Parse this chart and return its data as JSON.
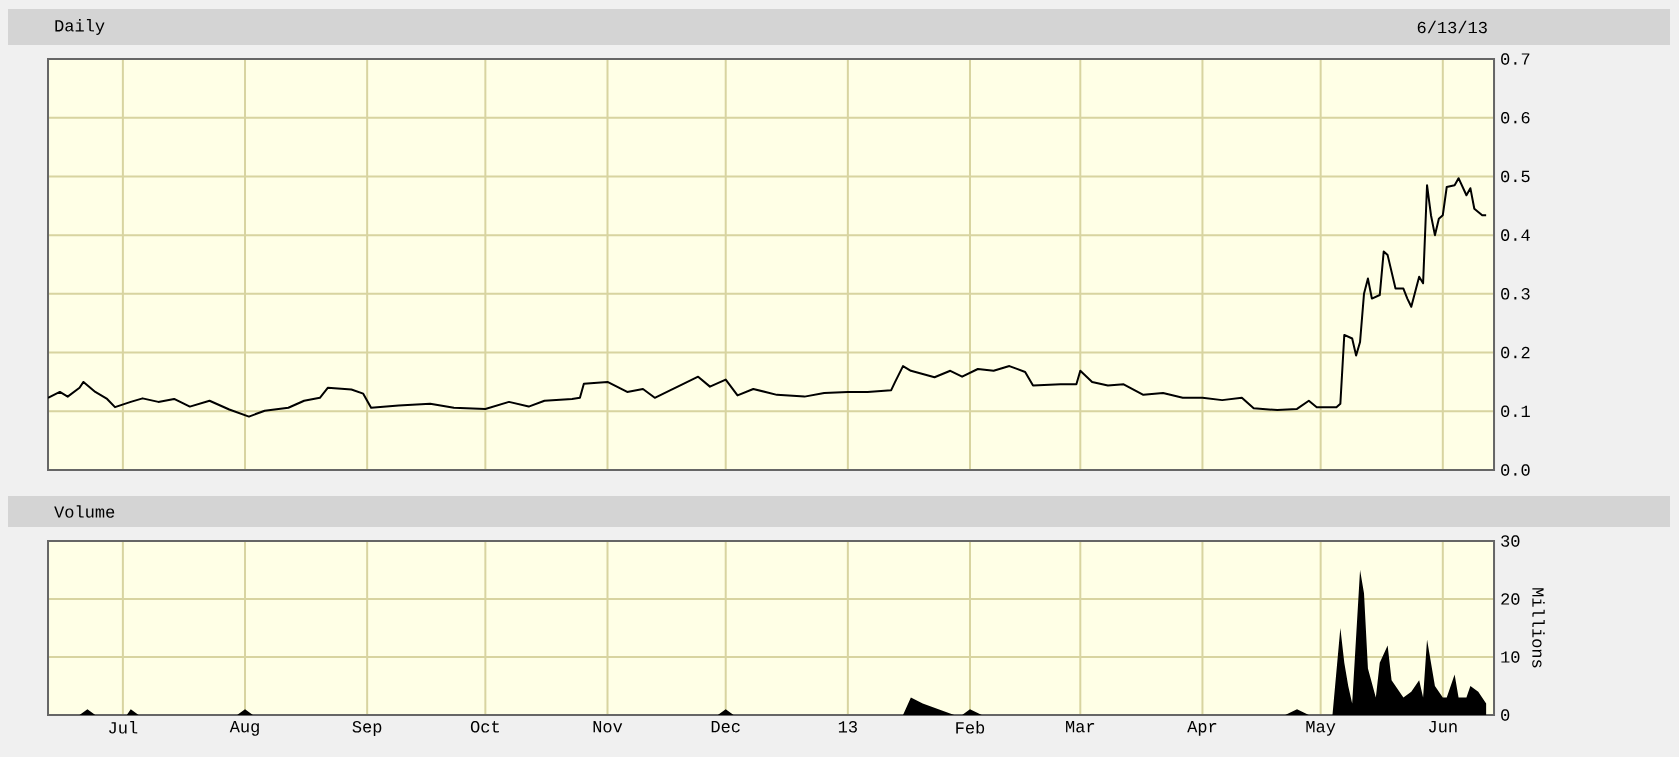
{
  "chart_data": [
    {
      "type": "line",
      "title": "Daily",
      "subtitle": "6/13/13",
      "x": [
        "2012-06-12",
        "2012-06-15",
        "2012-06-17",
        "2012-06-20",
        "2012-06-21",
        "2012-06-24",
        "2012-06-27",
        "2012-06-29",
        "2012-07-03",
        "2012-07-06",
        "2012-07-10",
        "2012-07-14",
        "2012-07-18",
        "2012-07-23",
        "2012-07-28",
        "2012-08-02",
        "2012-08-06",
        "2012-08-12",
        "2012-08-16",
        "2012-08-20",
        "2012-08-22",
        "2012-08-28",
        "2012-08-31",
        "2012-09-02",
        "2012-09-09",
        "2012-09-17",
        "2012-09-23",
        "2012-10-01",
        "2012-10-07",
        "2012-10-12",
        "2012-10-16",
        "2012-10-23",
        "2012-10-25",
        "2012-10-26",
        "2012-11-01",
        "2012-11-06",
        "2012-11-10",
        "2012-11-13",
        "2012-11-17",
        "2012-11-20",
        "2012-11-24",
        "2012-11-27",
        "2012-12-01",
        "2012-12-04",
        "2012-12-08",
        "2012-12-14",
        "2012-12-21",
        "2012-12-26",
        "2013-01-01",
        "2013-01-06",
        "2013-01-12",
        "2013-01-13",
        "2013-01-15",
        "2013-01-17",
        "2013-01-23",
        "2013-01-27",
        "2013-01-30",
        "2013-02-03",
        "2013-02-07",
        "2013-02-11",
        "2013-02-15",
        "2013-02-17",
        "2013-02-24",
        "2013-02-28",
        "2013-03-01",
        "2013-03-04",
        "2013-03-08",
        "2013-03-12",
        "2013-03-17",
        "2013-03-22",
        "2013-03-27",
        "2013-04-01",
        "2013-04-06",
        "2013-04-11",
        "2013-04-14",
        "2013-04-20",
        "2013-04-25",
        "2013-04-28",
        "2013-04-30",
        "2013-05-05",
        "2013-05-06",
        "2013-05-07",
        "2013-05-09",
        "2013-05-10",
        "2013-05-11",
        "2013-05-12",
        "2013-05-13",
        "2013-05-14",
        "2013-05-16",
        "2013-05-17",
        "2013-05-18",
        "2013-05-20",
        "2013-05-22",
        "2013-05-23",
        "2013-05-24",
        "2013-05-26",
        "2013-05-27",
        "2013-05-28",
        "2013-05-29",
        "2013-05-30",
        "2013-05-31",
        "2013-06-01",
        "2013-06-02",
        "2013-06-04",
        "2013-06-05",
        "2013-06-07",
        "2013-06-08",
        "2013-06-09",
        "2013-06-11",
        "2013-06-12"
      ],
      "values": [
        0.123,
        0.133,
        0.125,
        0.14,
        0.15,
        0.133,
        0.121,
        0.107,
        0.116,
        0.122,
        0.116,
        0.121,
        0.108,
        0.118,
        0.103,
        0.091,
        0.101,
        0.106,
        0.118,
        0.123,
        0.14,
        0.137,
        0.13,
        0.106,
        0.11,
        0.113,
        0.106,
        0.104,
        0.116,
        0.108,
        0.118,
        0.121,
        0.123,
        0.147,
        0.15,
        0.133,
        0.138,
        0.123,
        0.136,
        0.146,
        0.159,
        0.142,
        0.154,
        0.127,
        0.138,
        0.128,
        0.125,
        0.131,
        0.133,
        0.133,
        0.136,
        0.15,
        0.177,
        0.169,
        0.158,
        0.169,
        0.159,
        0.172,
        0.169,
        0.177,
        0.167,
        0.144,
        0.146,
        0.146,
        0.169,
        0.15,
        0.144,
        0.146,
        0.128,
        0.131,
        0.123,
        0.123,
        0.119,
        0.123,
        0.105,
        0.102,
        0.104,
        0.118,
        0.107,
        0.107,
        0.113,
        0.23,
        0.224,
        0.195,
        0.218,
        0.3,
        0.326,
        0.292,
        0.298,
        0.372,
        0.366,
        0.309,
        0.309,
        0.292,
        0.278,
        0.329,
        0.318,
        0.485,
        0.434,
        0.4,
        0.428,
        0.434,
        0.482,
        0.485,
        0.497,
        0.468,
        0.48,
        0.445,
        0.434,
        0.434
      ],
      "color": "#000000",
      "xlim": [
        "2012-06-12",
        "2013-06-14"
      ],
      "xticks": [
        {
          "value": "2012-07-01",
          "label": null
        },
        {
          "value": "2012-08-01",
          "label": null
        },
        {
          "value": "2012-09-01",
          "label": null
        },
        {
          "value": "2012-10-01",
          "label": null
        },
        {
          "value": "2012-11-01",
          "label": null
        },
        {
          "value": "2012-12-01",
          "label": null
        },
        {
          "value": "2013-01-01",
          "label": null
        },
        {
          "value": "2013-02-01",
          "label": null
        },
        {
          "value": "2013-03-01",
          "label": null
        },
        {
          "value": "2013-04-01",
          "label": null
        },
        {
          "value": "2013-05-01",
          "label": null
        },
        {
          "value": "2013-06-01",
          "label": null
        }
      ],
      "ylim": [
        0,
        0.7
      ],
      "yticks": [
        {
          "value": 0,
          "label": "0.0"
        },
        {
          "value": 0.1,
          "label": "0.1"
        },
        {
          "value": 0.2,
          "label": "0.2"
        },
        {
          "value": 0.3,
          "label": "0.3"
        },
        {
          "value": 0.4,
          "label": "0.4"
        },
        {
          "value": 0.5,
          "label": "0.5"
        },
        {
          "value": 0.6,
          "label": "0.6"
        },
        {
          "value": 0.7,
          "label": "0.7"
        }
      ],
      "grid": true,
      "tick_labels": "y"
    },
    {
      "type": "area",
      "title": "Volume",
      "ylabel": "Millions",
      "x": [
        "2012-06-12",
        "2012-06-20",
        "2012-06-22",
        "2012-06-24",
        "2012-07-02",
        "2012-07-03",
        "2012-07-05",
        "2012-07-30",
        "2012-08-01",
        "2012-08-03",
        "2012-11-29",
        "2012-12-01",
        "2012-12-03",
        "2013-01-15",
        "2013-01-17",
        "2013-01-20",
        "2013-01-24",
        "2013-01-28",
        "2013-01-30",
        "2013-02-01",
        "2013-02-04",
        "2013-04-22",
        "2013-04-25",
        "2013-04-28",
        "2013-05-04",
        "2013-05-06",
        "2013-05-07",
        "2013-05-08",
        "2013-05-09",
        "2013-05-11",
        "2013-05-12",
        "2013-05-13",
        "2013-05-15",
        "2013-05-16",
        "2013-05-18",
        "2013-05-19",
        "2013-05-22",
        "2013-05-24",
        "2013-05-26",
        "2013-05-27",
        "2013-05-28",
        "2013-05-30",
        "2013-06-01",
        "2013-06-02",
        "2013-06-04",
        "2013-06-05",
        "2013-06-07",
        "2013-06-08",
        "2013-06-10",
        "2013-06-12"
      ],
      "values": [
        0,
        0,
        1,
        0,
        0,
        1,
        0,
        0,
        1,
        0,
        0,
        1,
        0,
        0,
        3,
        2,
        1,
        0,
        0,
        1,
        0,
        0,
        1,
        0,
        0,
        15,
        9,
        5,
        2,
        25,
        21,
        8,
        3,
        9,
        12,
        6,
        3,
        4,
        6,
        3,
        13,
        5,
        3,
        3,
        7,
        3,
        3,
        5,
        4,
        2
      ],
      "color": "#000000",
      "xlim": [
        "2012-06-12",
        "2013-06-14"
      ],
      "xticks": [
        {
          "value": "2012-07-01",
          "label": "Jul"
        },
        {
          "value": "2012-08-01",
          "label": "Aug"
        },
        {
          "value": "2012-09-01",
          "label": "Sep"
        },
        {
          "value": "2012-10-01",
          "label": "Oct"
        },
        {
          "value": "2012-11-01",
          "label": "Nov"
        },
        {
          "value": "2012-12-01",
          "label": "Dec"
        },
        {
          "value": "2013-01-01",
          "label": "13"
        },
        {
          "value": "2013-02-01",
          "label": "Feb"
        },
        {
          "value": "2013-03-01",
          "label": "Mar"
        },
        {
          "value": "2013-04-01",
          "label": "Apr"
        },
        {
          "value": "2013-05-01",
          "label": "May"
        },
        {
          "value": "2013-06-01",
          "label": "Jun"
        }
      ],
      "ylim": [
        0,
        30
      ],
      "yticks": [
        0,
        10,
        20,
        30
      ],
      "grid": true
    }
  ]
}
